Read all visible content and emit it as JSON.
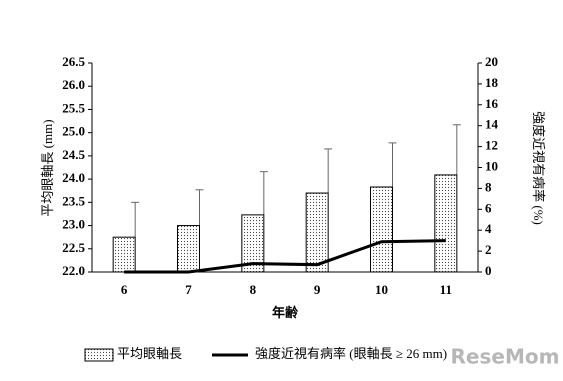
{
  "chart_data": {
    "type": "bar-line",
    "categories": [
      "6",
      "7",
      "8",
      "9",
      "10",
      "11"
    ],
    "xlabel": "年齢",
    "ylabel": "平均眼軸長 (mm)",
    "y2label": "強度近視有病率 (%)",
    "ylim": [
      22.0,
      26.5
    ],
    "yticks": [
      {
        "value": 22.0,
        "label": "22.0"
      },
      {
        "value": 22.5,
        "label": "22.5"
      },
      {
        "value": 23.0,
        "label": "23.0"
      },
      {
        "value": 23.5,
        "label": "23.5"
      },
      {
        "value": 24.0,
        "label": "24.0"
      },
      {
        "value": 24.5,
        "label": "24.5"
      },
      {
        "value": 25.0,
        "label": "25.0"
      },
      {
        "value": 25.5,
        "label": "25.5"
      },
      {
        "value": 26.0,
        "label": "26.0"
      },
      {
        "value": 26.5,
        "label": "26.5"
      }
    ],
    "y2lim": [
      0,
      20
    ],
    "y2ticks": [
      0,
      2,
      4,
      6,
      8,
      10,
      12,
      14,
      16,
      18,
      20
    ],
    "series": [
      {
        "name": "平均眼軸長",
        "type": "bar",
        "color": "#444444",
        "values": [
          22.75,
          23.0,
          23.23,
          23.7,
          23.83,
          24.09
        ],
        "errors": [
          0.75,
          0.77,
          0.93,
          0.95,
          0.95,
          1.08
        ]
      },
      {
        "name": "強度近視有病率 (眼軸長 ≥ 26 mm)",
        "type": "line",
        "axis": "y2",
        "color": "#000000",
        "values": [
          0,
          0,
          0.8,
          0.7,
          2.9,
          3.0
        ]
      }
    ],
    "watermark": "ReseMom"
  }
}
